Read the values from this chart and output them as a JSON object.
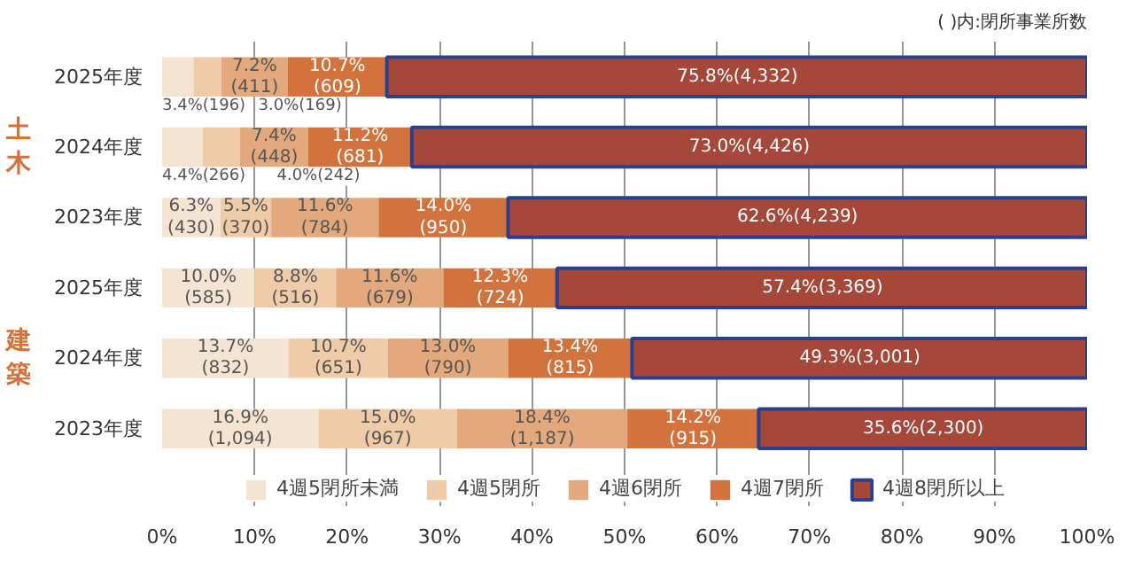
{
  "chart_data": {
    "type": "bar",
    "orientation": "horizontal",
    "stacked": true,
    "categories": [
      "2025年度",
      "2024年度",
      "2023年度",
      "2025年度",
      "2024年度",
      "2023年度"
    ],
    "series": [
      {
        "name": "4週5閉所未満",
        "color": "#f6e4d2",
        "values": [
          3.4,
          4.4,
          6.3,
          10.0,
          13.7,
          16.9
        ],
        "value_labels": [
          "3.4%(196)",
          "4.4%(266)",
          "6.3%\n(430)",
          "10.0%\n(585)",
          "13.7%\n(832)",
          "16.9%\n(1,094)"
        ]
      },
      {
        "name": "4週5閉所",
        "color": "#efcba8",
        "values": [
          3.0,
          4.0,
          5.5,
          8.8,
          10.7,
          15.0
        ],
        "value_labels": [
          "3.0%(169)",
          "4.0%(242)",
          "5.5%\n(370)",
          "8.8%\n(516)",
          "10.7%\n(651)",
          "15.0%\n(967)"
        ]
      },
      {
        "name": "4週6閉所",
        "color": "#e3a97c",
        "values": [
          7.2,
          7.4,
          11.6,
          11.6,
          13.0,
          18.4
        ],
        "value_labels": [
          "7.2%\n(411)",
          "7.4%\n(448)",
          "11.6%\n(784)",
          "11.6%\n(679)",
          "13.0%\n(790)",
          "18.4%\n(1,187)"
        ]
      },
      {
        "name": "4週7閉所",
        "color": "#d2733d",
        "values": [
          10.7,
          11.2,
          14.0,
          12.3,
          13.4,
          14.2
        ],
        "value_labels": [
          "10.7%\n(609)",
          "11.2%\n(681)",
          "14.0%\n(950)",
          "12.3%\n(724)",
          "13.4%\n(815)",
          "14.2%\n(915)"
        ]
      },
      {
        "name": "4週8閉所以上",
        "color": "#a5483a",
        "values": [
          75.8,
          73.0,
          62.6,
          57.4,
          49.3,
          35.6
        ],
        "value_labels": [
          "75.8%(4,332)",
          "73.0%(4,426)",
          "62.6%(4,239)",
          "57.4%(3,369)",
          "49.3%(3,001)",
          "35.6%(2,300)"
        ]
      }
    ],
    "xlim": [
      0,
      100
    ],
    "xticks": [
      {
        "value": 0,
        "label": "0%"
      },
      {
        "value": 10,
        "label": "10%"
      },
      {
        "value": 20,
        "label": "20%"
      },
      {
        "value": 30,
        "label": "30%"
      },
      {
        "value": 40,
        "label": "40%"
      },
      {
        "value": 50,
        "label": "50%"
      },
      {
        "value": 60,
        "label": "60%"
      },
      {
        "value": 70,
        "label": "70%"
      },
      {
        "value": 80,
        "label": "80%"
      },
      {
        "value": 90,
        "label": "90%"
      },
      {
        "value": 100,
        "label": "100%"
      }
    ],
    "grid": "x",
    "legend": "bottom",
    "annotations": [
      "土木",
      "建築",
      "( )内:閉所事業所数"
    ]
  }
}
